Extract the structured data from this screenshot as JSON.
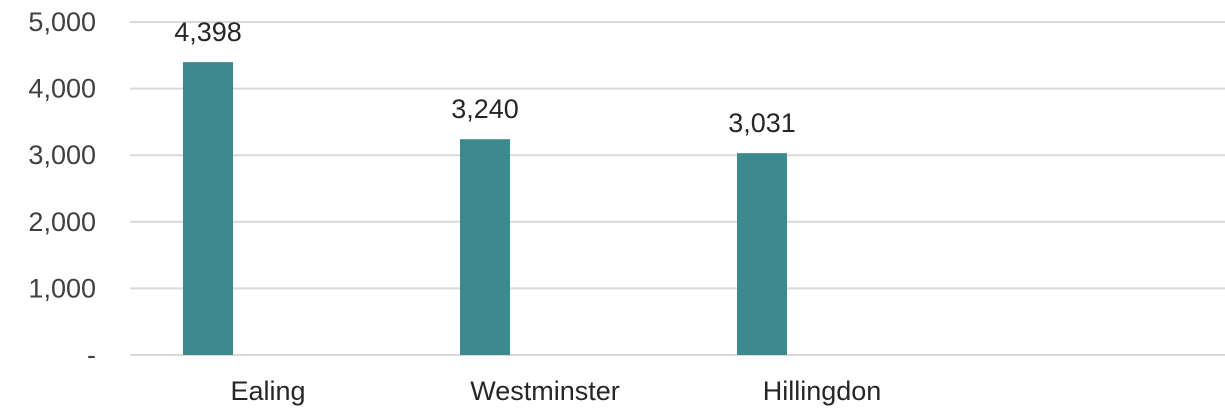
{
  "chart_data": {
    "type": "bar",
    "categories": [
      "Ealing",
      "Westminster",
      "Hillingdon"
    ],
    "values": [
      4398,
      3240,
      3031
    ],
    "data_labels": [
      "4,398",
      "3,240",
      "3,031"
    ],
    "title": "",
    "xlabel": "",
    "ylabel": "",
    "ylim": [
      0,
      5000
    ],
    "yticks": [
      0,
      1000,
      2000,
      3000,
      4000,
      5000
    ],
    "ytick_labels": [
      "-",
      "1,000",
      "2,000",
      "3,000",
      "4,000",
      "5,000"
    ],
    "grid": true,
    "legend": "none",
    "bar_color": "#3c8a8e"
  }
}
